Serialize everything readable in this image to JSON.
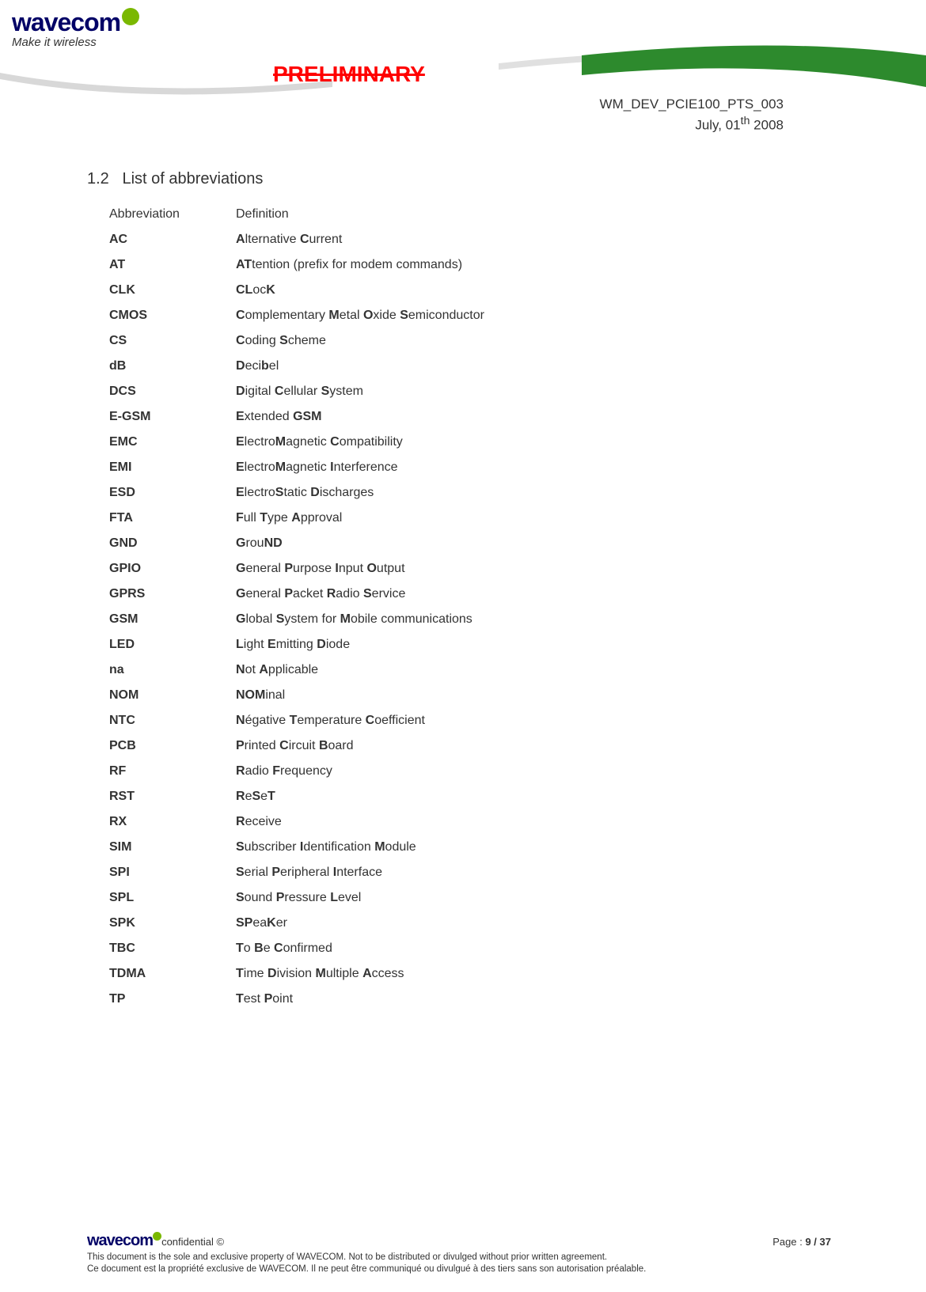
{
  "header": {
    "logo_text": "wavecom",
    "tagline": "Make it wireless",
    "preliminary": "PRELIMINARY",
    "doc_ref_line1": "WM_DEV_PCIE100_PTS_003",
    "doc_ref_line2_pre": "July, 01",
    "doc_ref_line2_sup": "th",
    "doc_ref_line2_post": " 2008"
  },
  "section": {
    "number": "1.2",
    "title": "List of abbreviations"
  },
  "table_header": {
    "col1": "Abbreviation",
    "col2": "Definition"
  },
  "rows": [
    {
      "abbr": "AC",
      "def_parts": [
        {
          "t": "A",
          "b": true
        },
        {
          "t": "lternative ",
          "b": false
        },
        {
          "t": "C",
          "b": true
        },
        {
          "t": "urrent",
          "b": false
        }
      ]
    },
    {
      "abbr": "AT",
      "def_parts": [
        {
          "t": "AT",
          "b": true
        },
        {
          "t": "tention (prefix for modem commands)",
          "b": false
        }
      ]
    },
    {
      "abbr": "CLK",
      "def_parts": [
        {
          "t": "CL",
          "b": true
        },
        {
          "t": "oc",
          "b": false
        },
        {
          "t": "K",
          "b": true
        }
      ]
    },
    {
      "abbr": "CMOS",
      "def_parts": [
        {
          "t": "C",
          "b": true
        },
        {
          "t": "omplementary ",
          "b": false
        },
        {
          "t": "M",
          "b": true
        },
        {
          "t": "etal ",
          "b": false
        },
        {
          "t": "O",
          "b": true
        },
        {
          "t": "xide ",
          "b": false
        },
        {
          "t": "S",
          "b": true
        },
        {
          "t": "emiconductor",
          "b": false
        }
      ]
    },
    {
      "abbr": "CS",
      "def_parts": [
        {
          "t": "C",
          "b": true
        },
        {
          "t": "oding ",
          "b": false
        },
        {
          "t": "S",
          "b": true
        },
        {
          "t": "cheme",
          "b": false
        }
      ]
    },
    {
      "abbr": "dB",
      "def_parts": [
        {
          "t": "D",
          "b": true
        },
        {
          "t": "eci",
          "b": false
        },
        {
          "t": "b",
          "b": true
        },
        {
          "t": "el",
          "b": false
        }
      ]
    },
    {
      "abbr": "DCS",
      "def_parts": [
        {
          "t": "D",
          "b": true
        },
        {
          "t": "igital ",
          "b": false
        },
        {
          "t": "C",
          "b": true
        },
        {
          "t": "ellular ",
          "b": false
        },
        {
          "t": "S",
          "b": true
        },
        {
          "t": "ystem",
          "b": false
        }
      ]
    },
    {
      "abbr": "E-GSM",
      "def_parts": [
        {
          "t": "E",
          "b": true
        },
        {
          "t": "xtended ",
          "b": false
        },
        {
          "t": "GSM",
          "b": true
        }
      ]
    },
    {
      "abbr": "EMC",
      "def_parts": [
        {
          "t": "E",
          "b": true
        },
        {
          "t": "lectro",
          "b": false
        },
        {
          "t": "M",
          "b": true
        },
        {
          "t": "agnetic ",
          "b": false
        },
        {
          "t": "C",
          "b": true
        },
        {
          "t": "ompatibility",
          "b": false
        }
      ]
    },
    {
      "abbr": "EMI",
      "def_parts": [
        {
          "t": "E",
          "b": true
        },
        {
          "t": "lectro",
          "b": false
        },
        {
          "t": "M",
          "b": true
        },
        {
          "t": "agnetic ",
          "b": false
        },
        {
          "t": "I",
          "b": true
        },
        {
          "t": "nterference",
          "b": false
        }
      ]
    },
    {
      "abbr": "ESD",
      "def_parts": [
        {
          "t": "E",
          "b": true
        },
        {
          "t": "lectro",
          "b": false
        },
        {
          "t": "S",
          "b": true
        },
        {
          "t": "tatic ",
          "b": false
        },
        {
          "t": "D",
          "b": true
        },
        {
          "t": "ischarges",
          "b": false
        }
      ]
    },
    {
      "abbr": "FTA",
      "def_parts": [
        {
          "t": "F",
          "b": true
        },
        {
          "t": "ull ",
          "b": false
        },
        {
          "t": "T",
          "b": true
        },
        {
          "t": "ype ",
          "b": false
        },
        {
          "t": "A",
          "b": true
        },
        {
          "t": "pproval",
          "b": false
        }
      ]
    },
    {
      "abbr": "GND",
      "def_parts": [
        {
          "t": "G",
          "b": true
        },
        {
          "t": "rou",
          "b": false
        },
        {
          "t": "ND",
          "b": true
        }
      ]
    },
    {
      "abbr": "GPIO",
      "def_parts": [
        {
          "t": "G",
          "b": true
        },
        {
          "t": "eneral ",
          "b": false
        },
        {
          "t": "P",
          "b": true
        },
        {
          "t": "urpose ",
          "b": false
        },
        {
          "t": "I",
          "b": true
        },
        {
          "t": "nput ",
          "b": false
        },
        {
          "t": "O",
          "b": true
        },
        {
          "t": "utput",
          "b": false
        }
      ]
    },
    {
      "abbr": "GPRS",
      "def_parts": [
        {
          "t": "G",
          "b": true
        },
        {
          "t": "eneral ",
          "b": false
        },
        {
          "t": "P",
          "b": true
        },
        {
          "t": "acket ",
          "b": false
        },
        {
          "t": "R",
          "b": true
        },
        {
          "t": "adio ",
          "b": false
        },
        {
          "t": "S",
          "b": true
        },
        {
          "t": "ervice",
          "b": false
        }
      ]
    },
    {
      "abbr": "GSM",
      "def_parts": [
        {
          "t": "G",
          "b": true
        },
        {
          "t": "lobal ",
          "b": false
        },
        {
          "t": "S",
          "b": true
        },
        {
          "t": "ystem for ",
          "b": false
        },
        {
          "t": "M",
          "b": true
        },
        {
          "t": "obile communications",
          "b": false
        }
      ]
    },
    {
      "abbr": "LED",
      "def_parts": [
        {
          "t": "L",
          "b": true
        },
        {
          "t": "ight ",
          "b": false
        },
        {
          "t": "E",
          "b": true
        },
        {
          "t": "mitting ",
          "b": false
        },
        {
          "t": "D",
          "b": true
        },
        {
          "t": "iode",
          "b": false
        }
      ]
    },
    {
      "abbr": "na",
      "def_parts": [
        {
          "t": "N",
          "b": true
        },
        {
          "t": "ot ",
          "b": false
        },
        {
          "t": "A",
          "b": true
        },
        {
          "t": "pplicable",
          "b": false
        }
      ]
    },
    {
      "abbr": "NOM",
      "def_parts": [
        {
          "t": "NOM",
          "b": true
        },
        {
          "t": "inal",
          "b": false
        }
      ]
    },
    {
      "abbr": "NTC",
      "def_parts": [
        {
          "t": "N",
          "b": true
        },
        {
          "t": "égative ",
          "b": false
        },
        {
          "t": "T",
          "b": true
        },
        {
          "t": "emperature ",
          "b": false
        },
        {
          "t": "C",
          "b": true
        },
        {
          "t": "oefficient",
          "b": false
        }
      ]
    },
    {
      "abbr": "PCB",
      "def_parts": [
        {
          "t": "P",
          "b": true
        },
        {
          "t": "rinted ",
          "b": false
        },
        {
          "t": "C",
          "b": true
        },
        {
          "t": "ircuit ",
          "b": false
        },
        {
          "t": "B",
          "b": true
        },
        {
          "t": "oard",
          "b": false
        }
      ]
    },
    {
      "abbr": "RF",
      "def_parts": [
        {
          "t": "R",
          "b": true
        },
        {
          "t": "adio ",
          "b": false
        },
        {
          "t": "F",
          "b": true
        },
        {
          "t": "requency",
          "b": false
        }
      ]
    },
    {
      "abbr": "RST",
      "def_parts": [
        {
          "t": "R",
          "b": true
        },
        {
          "t": "e",
          "b": false
        },
        {
          "t": "S",
          "b": true
        },
        {
          "t": "e",
          "b": false
        },
        {
          "t": "T",
          "b": true
        }
      ]
    },
    {
      "abbr": "RX",
      "def_parts": [
        {
          "t": "R",
          "b": true
        },
        {
          "t": "eceive",
          "b": false
        }
      ]
    },
    {
      "abbr": "SIM",
      "def_parts": [
        {
          "t": "S",
          "b": true
        },
        {
          "t": "ubscriber ",
          "b": false
        },
        {
          "t": "I",
          "b": true
        },
        {
          "t": "dentification ",
          "b": false
        },
        {
          "t": "M",
          "b": true
        },
        {
          "t": "odule",
          "b": false
        }
      ]
    },
    {
      "abbr": "SPI",
      "def_parts": [
        {
          "t": "S",
          "b": true
        },
        {
          "t": "erial ",
          "b": false
        },
        {
          "t": "P",
          "b": true
        },
        {
          "t": "eripheral ",
          "b": false
        },
        {
          "t": "I",
          "b": true
        },
        {
          "t": "nterface",
          "b": false
        }
      ]
    },
    {
      "abbr": "SPL",
      "def_parts": [
        {
          "t": "S",
          "b": true
        },
        {
          "t": "ound ",
          "b": false
        },
        {
          "t": "P",
          "b": true
        },
        {
          "t": "ressure ",
          "b": false
        },
        {
          "t": "L",
          "b": true
        },
        {
          "t": "evel",
          "b": false
        }
      ]
    },
    {
      "abbr": "SPK",
      "def_parts": [
        {
          "t": "SP",
          "b": true
        },
        {
          "t": "ea",
          "b": false
        },
        {
          "t": "K",
          "b": true
        },
        {
          "t": "er",
          "b": false
        }
      ]
    },
    {
      "abbr": "TBC",
      "def_parts": [
        {
          "t": "T",
          "b": true
        },
        {
          "t": "o ",
          "b": false
        },
        {
          "t": "B",
          "b": true
        },
        {
          "t": "e ",
          "b": false
        },
        {
          "t": "C",
          "b": true
        },
        {
          "t": "onfirmed",
          "b": false
        }
      ]
    },
    {
      "abbr": "TDMA",
      "def_parts": [
        {
          "t": "T",
          "b": true
        },
        {
          "t": "ime ",
          "b": false
        },
        {
          "t": "D",
          "b": true
        },
        {
          "t": "ivision ",
          "b": false
        },
        {
          "t": "M",
          "b": true
        },
        {
          "t": "ultiple ",
          "b": false
        },
        {
          "t": "A",
          "b": true
        },
        {
          "t": "ccess",
          "b": false
        }
      ]
    },
    {
      "abbr": "TP",
      "def_parts": [
        {
          "t": "T",
          "b": true
        },
        {
          "t": "est ",
          "b": false
        },
        {
          "t": "P",
          "b": true
        },
        {
          "t": "oint",
          "b": false
        }
      ]
    }
  ],
  "footer": {
    "logo": "wavecom",
    "confidential": "confidential ©",
    "page_label": "Page : ",
    "page": "9 / 37",
    "text1": "This document is the sole and exclusive property of WAVECOM. Not to be distributed or divulged without prior written agreement.",
    "text2": "Ce document est la propriété exclusive de WAVECOM. Il ne peut être communiqué ou divulgué à des tiers sans son autorisation préalable."
  },
  "colors": {
    "preliminary": "#ff0000",
    "logo_blue": "#000066",
    "green": "#7ab800"
  }
}
